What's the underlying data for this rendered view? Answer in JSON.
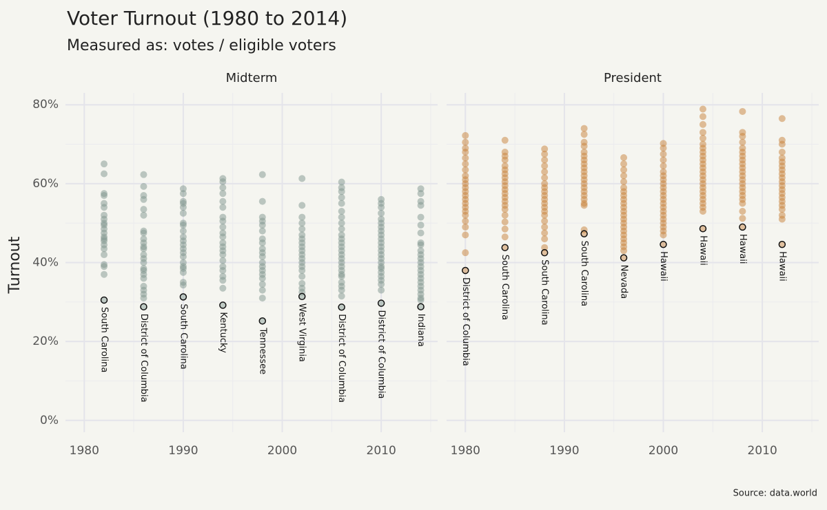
{
  "chart_data": {
    "type": "scatter",
    "title": "Voter Turnout (1980 to 2014)",
    "subtitle": "Measured as: votes / eligible voters",
    "y_label": "Turnout",
    "source": "Source: data.world",
    "ylim": [
      -3,
      83
    ],
    "yticks": [
      {
        "value": 0,
        "label": "0%"
      },
      {
        "value": 20,
        "label": "20%"
      },
      {
        "value": 40,
        "label": "40%"
      },
      {
        "value": 60,
        "label": "60%"
      },
      {
        "value": 80,
        "label": "80%"
      }
    ],
    "minor_yticks": [
      10,
      30,
      50,
      70
    ],
    "xlim": [
      1978.1,
      2015.7
    ],
    "xticks": [
      1980,
      1990,
      2000,
      2010
    ],
    "minor_xticks": [
      1985,
      1995,
      2005,
      2015
    ],
    "grid": true,
    "facets": [
      {
        "name": "Midterm",
        "color": "#7f968e",
        "groups": [
          {
            "x": 1982,
            "values": [
              65,
              62.5,
              57.5,
              57,
              55,
              54,
              52,
              51,
              50,
              49.5,
              48.5,
              47.5,
              46.5,
              46,
              45.5,
              44.5,
              43.5,
              42,
              39.5,
              39,
              37
            ],
            "min_state": "South Carolina",
            "min_value": 30.5
          },
          {
            "x": 1986,
            "values": [
              62.3,
              59.3,
              57,
              56,
              53.5,
              52,
              48,
              47.5,
              46,
              45,
              44,
              43.5,
              42,
              41,
              40,
              38.5,
              38,
              37,
              36,
              34,
              33,
              32,
              31
            ],
            "min_state": "District of Columbia",
            "min_value": 28.8
          },
          {
            "x": 1990,
            "values": [
              58.7,
              57.5,
              55.5,
              55,
              54,
              52.5,
              50,
              49.5,
              48,
              46.5,
              45.5,
              44.5,
              43.5,
              42.5,
              41.5,
              40,
              39,
              38.5,
              37.5,
              35,
              34.3
            ],
            "min_state": "South Carolina",
            "min_value": 31.3
          },
          {
            "x": 1994,
            "values": [
              61.3,
              60.5,
              59,
              57.5,
              55.5,
              54,
              51.5,
              50.5,
              49,
              47.5,
              46.5,
              45,
              44,
              43,
              42,
              40.5,
              39,
              38,
              36.5,
              35.5,
              33.5
            ],
            "min_state": "Kentucky",
            "min_value": 29.2
          },
          {
            "x": 1998,
            "values": [
              62.3,
              55.5,
              51.5,
              50.5,
              49.5,
              48,
              46,
              45,
              43.5,
              42.5,
              41.5,
              40,
              39,
              38,
              37,
              36,
              34.5,
              33,
              31
            ],
            "min_state": "Tennessee",
            "min_value": 25.2
          },
          {
            "x": 2002,
            "values": [
              61.3,
              54.5,
              51.5,
              50,
              48.5,
              47,
              46,
              45,
              44,
              43,
              42,
              41,
              40,
              39,
              38,
              36.5,
              34.7,
              33.5,
              32.5
            ],
            "min_state": "West Virginia",
            "min_value": 31.4
          },
          {
            "x": 2006,
            "values": [
              60.4,
              59,
              58,
              56.5,
              55,
              53,
              51.5,
              50,
              48.5,
              47,
              46,
              45,
              44,
              43,
              42,
              41,
              40,
              39,
              38,
              37,
              36.5,
              35,
              34,
              33,
              31.5
            ],
            "min_state": "District of Columbia",
            "min_value": 28.7
          },
          {
            "x": 2010,
            "values": [
              56,
              55,
              54,
              52.5,
              51,
              50,
              49,
              48,
              47,
              46,
              45,
              44,
              43,
              42,
              41,
              40,
              39,
              38.5,
              37.5,
              36.5,
              35.5,
              34.5,
              33
            ],
            "min_state": "District of Columbia",
            "min_value": 29.7
          },
          {
            "x": 2014,
            "values": [
              58.7,
              57.5,
              55.5,
              54.5,
              51.5,
              49.5,
              47.5,
              45,
              44.5,
              43,
              42,
              41,
              40,
              39,
              38,
              37,
              36,
              35,
              34,
              33,
              32,
              31,
              30.5
            ],
            "min_state": "Indiana",
            "min_value": 28.8
          }
        ]
      },
      {
        "name": "President",
        "color": "#c8813a",
        "groups": [
          {
            "x": 1980,
            "values": [
              72.2,
              70.5,
              69,
              68,
              66.5,
              65,
              63.5,
              62,
              61,
              60,
              59,
              58,
              57,
              56,
              55,
              54,
              53,
              52,
              50.5,
              49,
              47,
              42.5
            ],
            "min_state": "District of Columbia",
            "min_value": 38
          },
          {
            "x": 1984,
            "values": [
              71,
              68,
              67,
              66,
              64.5,
              63.5,
              62.5,
              61.5,
              60.5,
              59.5,
              58.5,
              57.5,
              56.5,
              55.5,
              54.5,
              53.5,
              52,
              50.3,
              48.5,
              46.5
            ],
            "min_state": "South Carolina",
            "min_value": 43.8
          },
          {
            "x": 1988,
            "values": [
              68.8,
              67.5,
              66,
              64.5,
              63,
              61.5,
              60,
              59,
              58,
              57,
              56,
              55,
              54,
              53,
              52,
              50.5,
              49,
              47.5,
              46,
              43.8
            ],
            "min_state": "South Carolina",
            "min_value": 42.5
          },
          {
            "x": 1992,
            "values": [
              74,
              72.5,
              70.5,
              69.5,
              68,
              67,
              66,
              65,
              64,
              63,
              62,
              61,
              60,
              59,
              58,
              57,
              56,
              55,
              54.5,
              48.3
            ],
            "min_state": "South Carolina",
            "min_value": 47.3
          },
          {
            "x": 1996,
            "values": [
              66.6,
              65,
              63.5,
              62,
              60.5,
              59,
              58,
              57,
              56,
              55,
              54,
              53,
              52,
              51,
              50,
              49,
              48,
              47,
              46,
              45,
              44,
              43
            ],
            "min_state": "Nevada",
            "min_value": 41.2
          },
          {
            "x": 2000,
            "values": [
              70.2,
              69,
              67.5,
              66,
              64.5,
              63,
              62,
              61,
              60,
              59,
              58,
              57,
              56,
              55,
              54,
              53,
              52,
              51,
              50,
              49,
              48,
              47
            ],
            "min_state": "Hawaii",
            "min_value": 44.6
          },
          {
            "x": 2004,
            "values": [
              78.9,
              77,
              75,
              73,
              71.5,
              70,
              69,
              68,
              67,
              66,
              65,
              64,
              63,
              62,
              61,
              60,
              59,
              58,
              57,
              56,
              55,
              54,
              53
            ],
            "min_state": "Hawaii",
            "min_value": 48.6
          },
          {
            "x": 2008,
            "values": [
              78.3,
              73,
              72,
              70.5,
              69,
              68,
              67,
              66,
              65,
              64,
              63,
              62,
              61,
              60,
              59,
              58,
              57,
              56,
              55,
              53,
              51.2
            ],
            "min_state": "Hawaii",
            "min_value": 49
          },
          {
            "x": 2012,
            "values": [
              76.5,
              71,
              70,
              68,
              66.5,
              65.5,
              64.5,
              63.5,
              62.5,
              61.5,
              60.5,
              59.5,
              58.5,
              57.5,
              56.5,
              55.5,
              54.5,
              53.5,
              52,
              51
            ],
            "min_state": "Hawaii",
            "min_value": 44.6
          }
        ]
      }
    ]
  }
}
